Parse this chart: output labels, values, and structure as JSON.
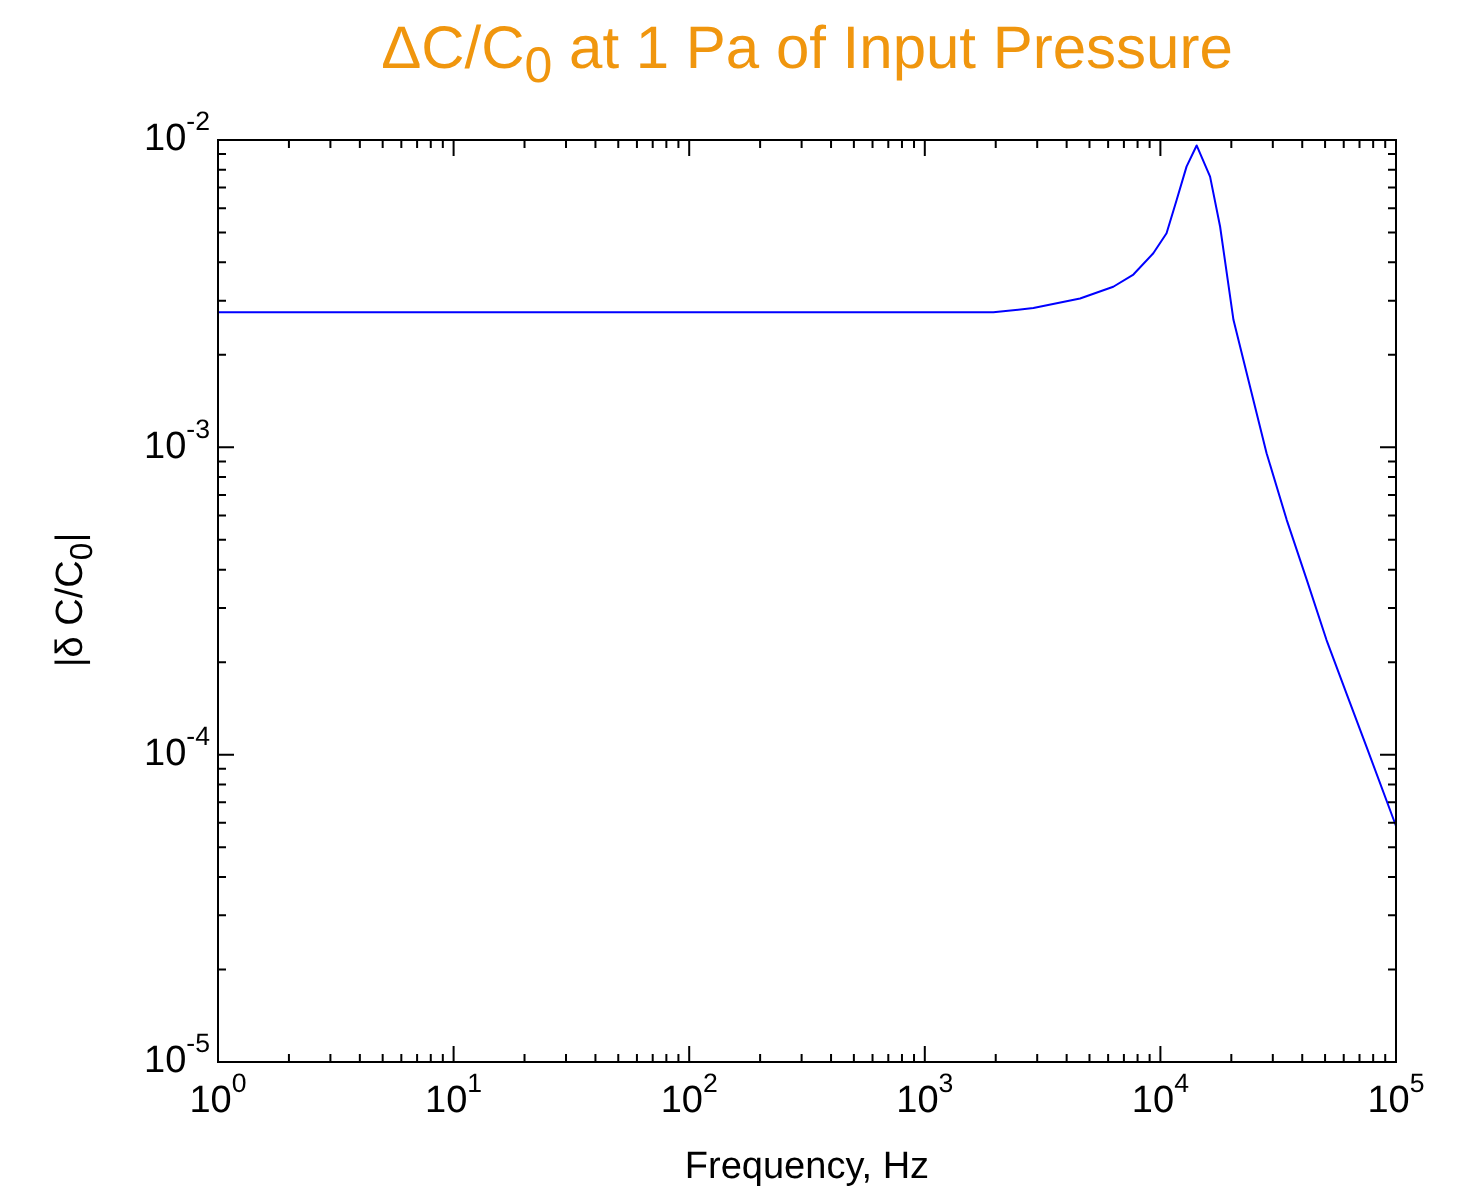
{
  "chart_data": {
    "type": "line",
    "title": "ΔC/C$_{0}$ at 1 Pa of Input Pressure",
    "xlabel": "Frequency, Hz",
    "ylabel": "|δ C/C$_{0}$|",
    "x": [
      1,
      1955,
      2890,
      4560,
      6310,
      7680,
      9330,
      10620,
      11720,
      12910,
      14250,
      16250,
      17920,
      20420,
      23990,
      28230,
      34360,
      41780,
      50720,
      61660,
      74990,
      100000
    ],
    "series": [
      {
        "color": "#0000ff",
        "values": [
          0.00275,
          0.00275,
          0.00284,
          0.00305,
          0.00333,
          0.00365,
          0.00428,
          0.00497,
          0.00638,
          0.00819,
          0.0096,
          0.0076,
          0.00523,
          0.0026,
          0.00158,
          0.000957,
          0.000581,
          0.000371,
          0.000236,
          0.000158,
          0.000106,
          5.86e-05
        ]
      }
    ],
    "log": "xy",
    "xlim": [
      1,
      100000
    ],
    "ylim": [
      1e-05,
      0.01
    ],
    "xticks": [
      {
        "value": 1,
        "label": "10$^{0}$"
      },
      {
        "value": 10,
        "label": "10$^{1}$"
      },
      {
        "value": 100,
        "label": "10$^{2}$"
      },
      {
        "value": 1000,
        "label": "10$^{3}$"
      },
      {
        "value": 10000,
        "label": "10$^{4}$"
      },
      {
        "value": 100000,
        "label": "10$^{5}$"
      }
    ],
    "yticks": [
      {
        "value": 1e-05,
        "label": "10$^{-5}$"
      },
      {
        "value": 0.0001,
        "label": "10$^{-4}$"
      },
      {
        "value": 0.001,
        "label": "10$^{-3}$"
      },
      {
        "value": 0.01,
        "label": "10$^{-2}$"
      }
    ],
    "grid": false,
    "legend": false,
    "marker": "none",
    "line_style": "solid"
  }
}
